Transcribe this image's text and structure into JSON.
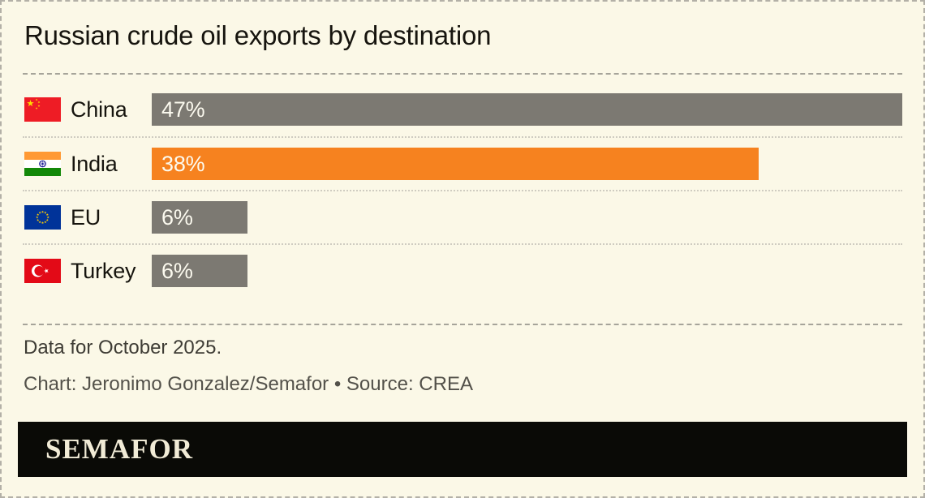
{
  "title": "Russian crude oil exports by destination",
  "chart_data": {
    "type": "bar",
    "orientation": "horizontal",
    "title": "Russian crude oil exports by destination",
    "categories": [
      "China",
      "India",
      "EU",
      "Turkey"
    ],
    "values": [
      47,
      38,
      6,
      6
    ],
    "value_labels": [
      "47%",
      "38%",
      "6%",
      "6%"
    ],
    "flags": [
      "china",
      "india",
      "eu",
      "turkey"
    ],
    "bar_colors": [
      "#7C7972",
      "#F6821F",
      "#7C7972",
      "#7C7972"
    ],
    "xlim": [
      0,
      47
    ],
    "grid": false,
    "legend": "none",
    "value_label_position": "inside-start"
  },
  "notes": {
    "data_note": "Data for October 2025.",
    "attribution": "Chart: Jeronimo Gonzalez/Semafor • Source: CREA"
  },
  "branding": {
    "wordmark": "SEMAFOR"
  },
  "colors": {
    "background": "#FBF8E7",
    "bar_gray": "#7C7972",
    "bar_orange": "#F6821F",
    "bar_value_text": "#FCFAEF",
    "text_dark": "#16140E",
    "note_text": "#3E3C35",
    "attribution_text": "#53514A",
    "logo_bar_background": "#0A0A06",
    "wordmark_text": "#F1EBD6",
    "border_dash": "#B3B0A7"
  }
}
